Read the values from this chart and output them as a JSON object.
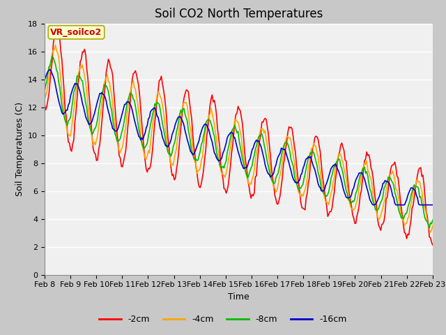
{
  "title": "Soil CO2 North Temperatures",
  "xlabel": "Time",
  "ylabel": "Soil Temperatures (C)",
  "ylim": [
    0,
    18
  ],
  "xtick_labels": [
    "Feb 8",
    "Feb 9",
    "Feb 10",
    "Feb 11",
    "Feb 12",
    "Feb 13",
    "Feb 14",
    "Feb 15",
    "Feb 16",
    "Feb 17",
    "Feb 18",
    "Feb 19",
    "Feb 20",
    "Feb 21",
    "Feb 22",
    "Feb 23"
  ],
  "legend_labels": [
    "-2cm",
    "-4cm",
    "-8cm",
    "-16cm"
  ],
  "legend_colors": [
    "#ff0000",
    "#ffa500",
    "#00bb00",
    "#0000cc"
  ],
  "annotation_text": "VR_soilco2",
  "annotation_bg": "#ffffcc",
  "annotation_border": "#aaaa00",
  "title_fontsize": 12,
  "axis_label_fontsize": 9,
  "tick_fontsize": 8,
  "legend_fontsize": 9,
  "fig_bg": "#c8c8c8",
  "plot_bg": "#f0f0f0",
  "grid_color": "#ffffff",
  "ytick_vals": [
    0,
    2,
    4,
    6,
    8,
    10,
    12,
    14,
    16,
    18
  ],
  "n_days": 15,
  "n_per_day": 24
}
